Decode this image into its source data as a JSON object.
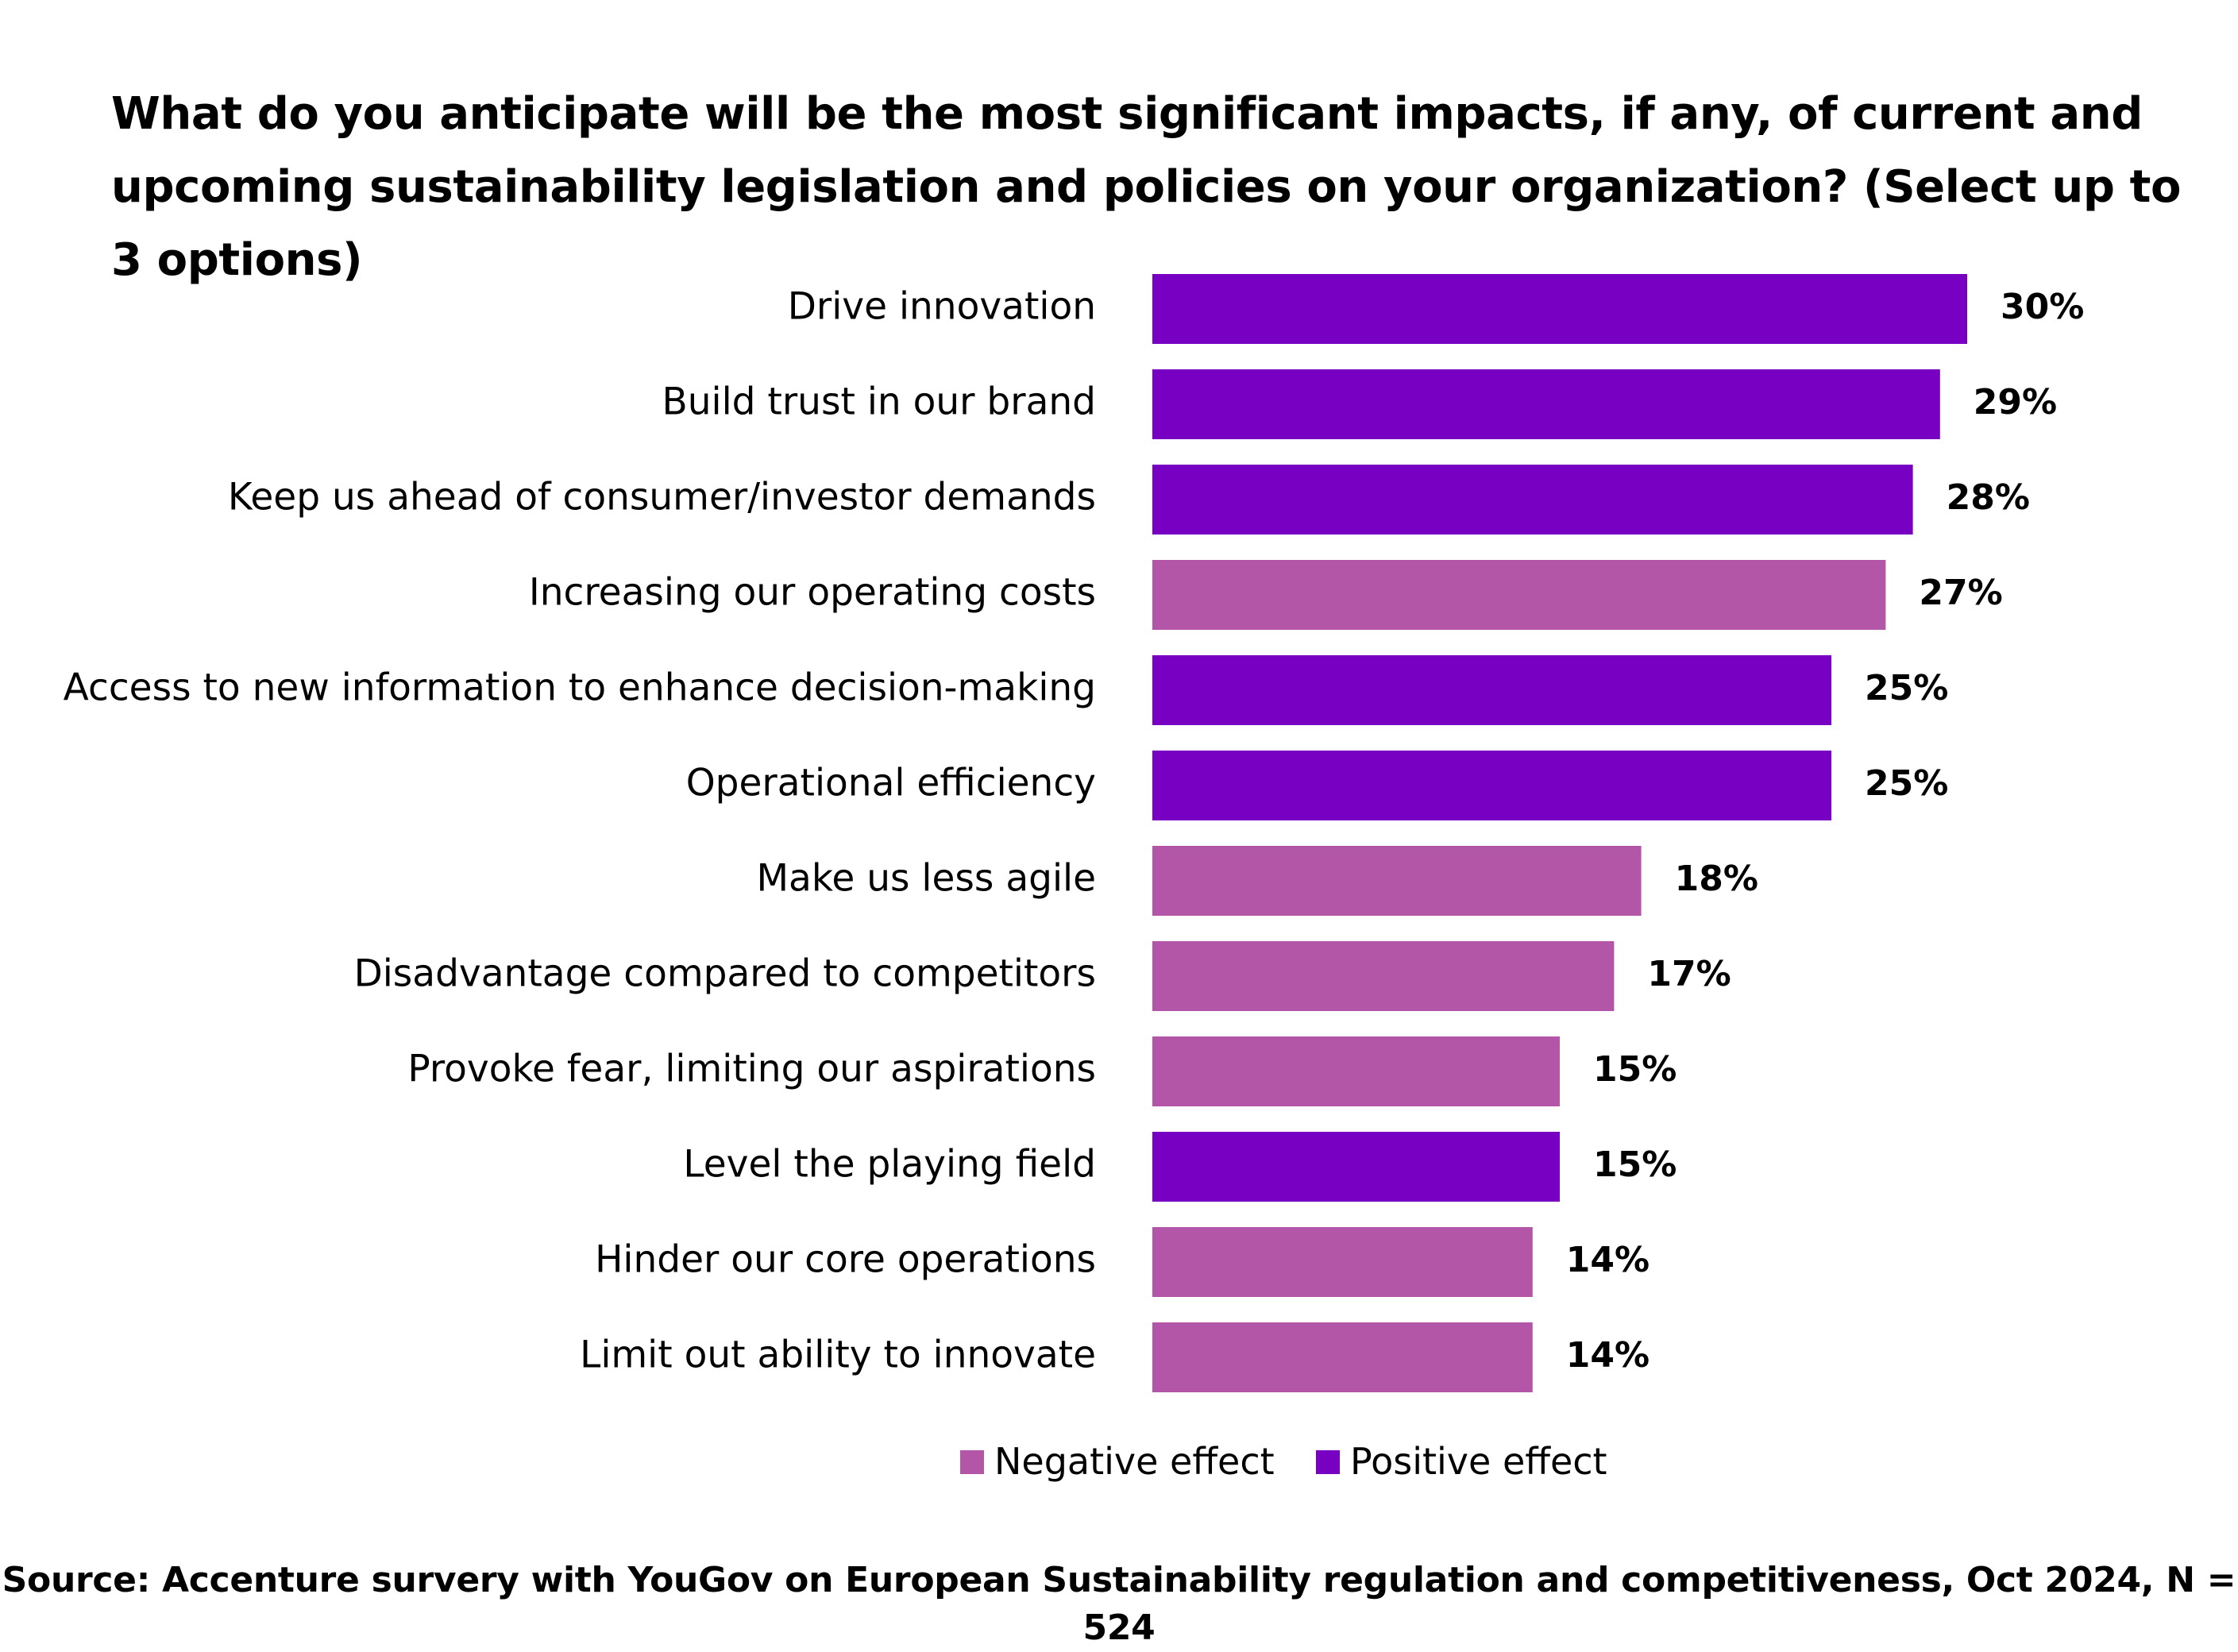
{
  "chart_data": {
    "type": "bar",
    "orientation": "horizontal",
    "title": "What do you anticipate will be the most significant impacts, if any, of current and upcoming sustainability legislation and policies on your organization?  (Select up to 3 options)",
    "categories": [
      "Drive innovation",
      "Build trust in our brand",
      "Keep us ahead of consumer/investor demands",
      "Increasing our operating costs",
      "Access to new information to enhance decision-making",
      "Operational efficiency",
      "Make us less agile",
      "Disadvantage compared to competitors",
      "Provoke fear, limiting our aspirations",
      "Level the playing field",
      "Hinder our core operations",
      "Limit out ability to innovate"
    ],
    "values": [
      30,
      29,
      28,
      27,
      25,
      25,
      18,
      17,
      15,
      15,
      14,
      14
    ],
    "value_labels": [
      "30%",
      "29%",
      "28%",
      "27%",
      "25%",
      "25%",
      "18%",
      "17%",
      "15%",
      "15%",
      "14%",
      "14%"
    ],
    "effect": [
      "positive",
      "positive",
      "positive",
      "negative",
      "positive",
      "positive",
      "negative",
      "negative",
      "negative",
      "positive",
      "negative",
      "negative"
    ],
    "unit": "%",
    "xlim": [
      0,
      30
    ],
    "grid": false,
    "legend": {
      "position": "bottom-center",
      "items": [
        {
          "key": "negative",
          "label": "Negative effect",
          "color": "#b456a8"
        },
        {
          "key": "positive",
          "label": "Positive effect",
          "color": "#7800c2"
        }
      ]
    },
    "source": "Source: Accenture survery with YouGov on European Sustainability regulation and competitiveness, Oct 2024, N = 524"
  }
}
